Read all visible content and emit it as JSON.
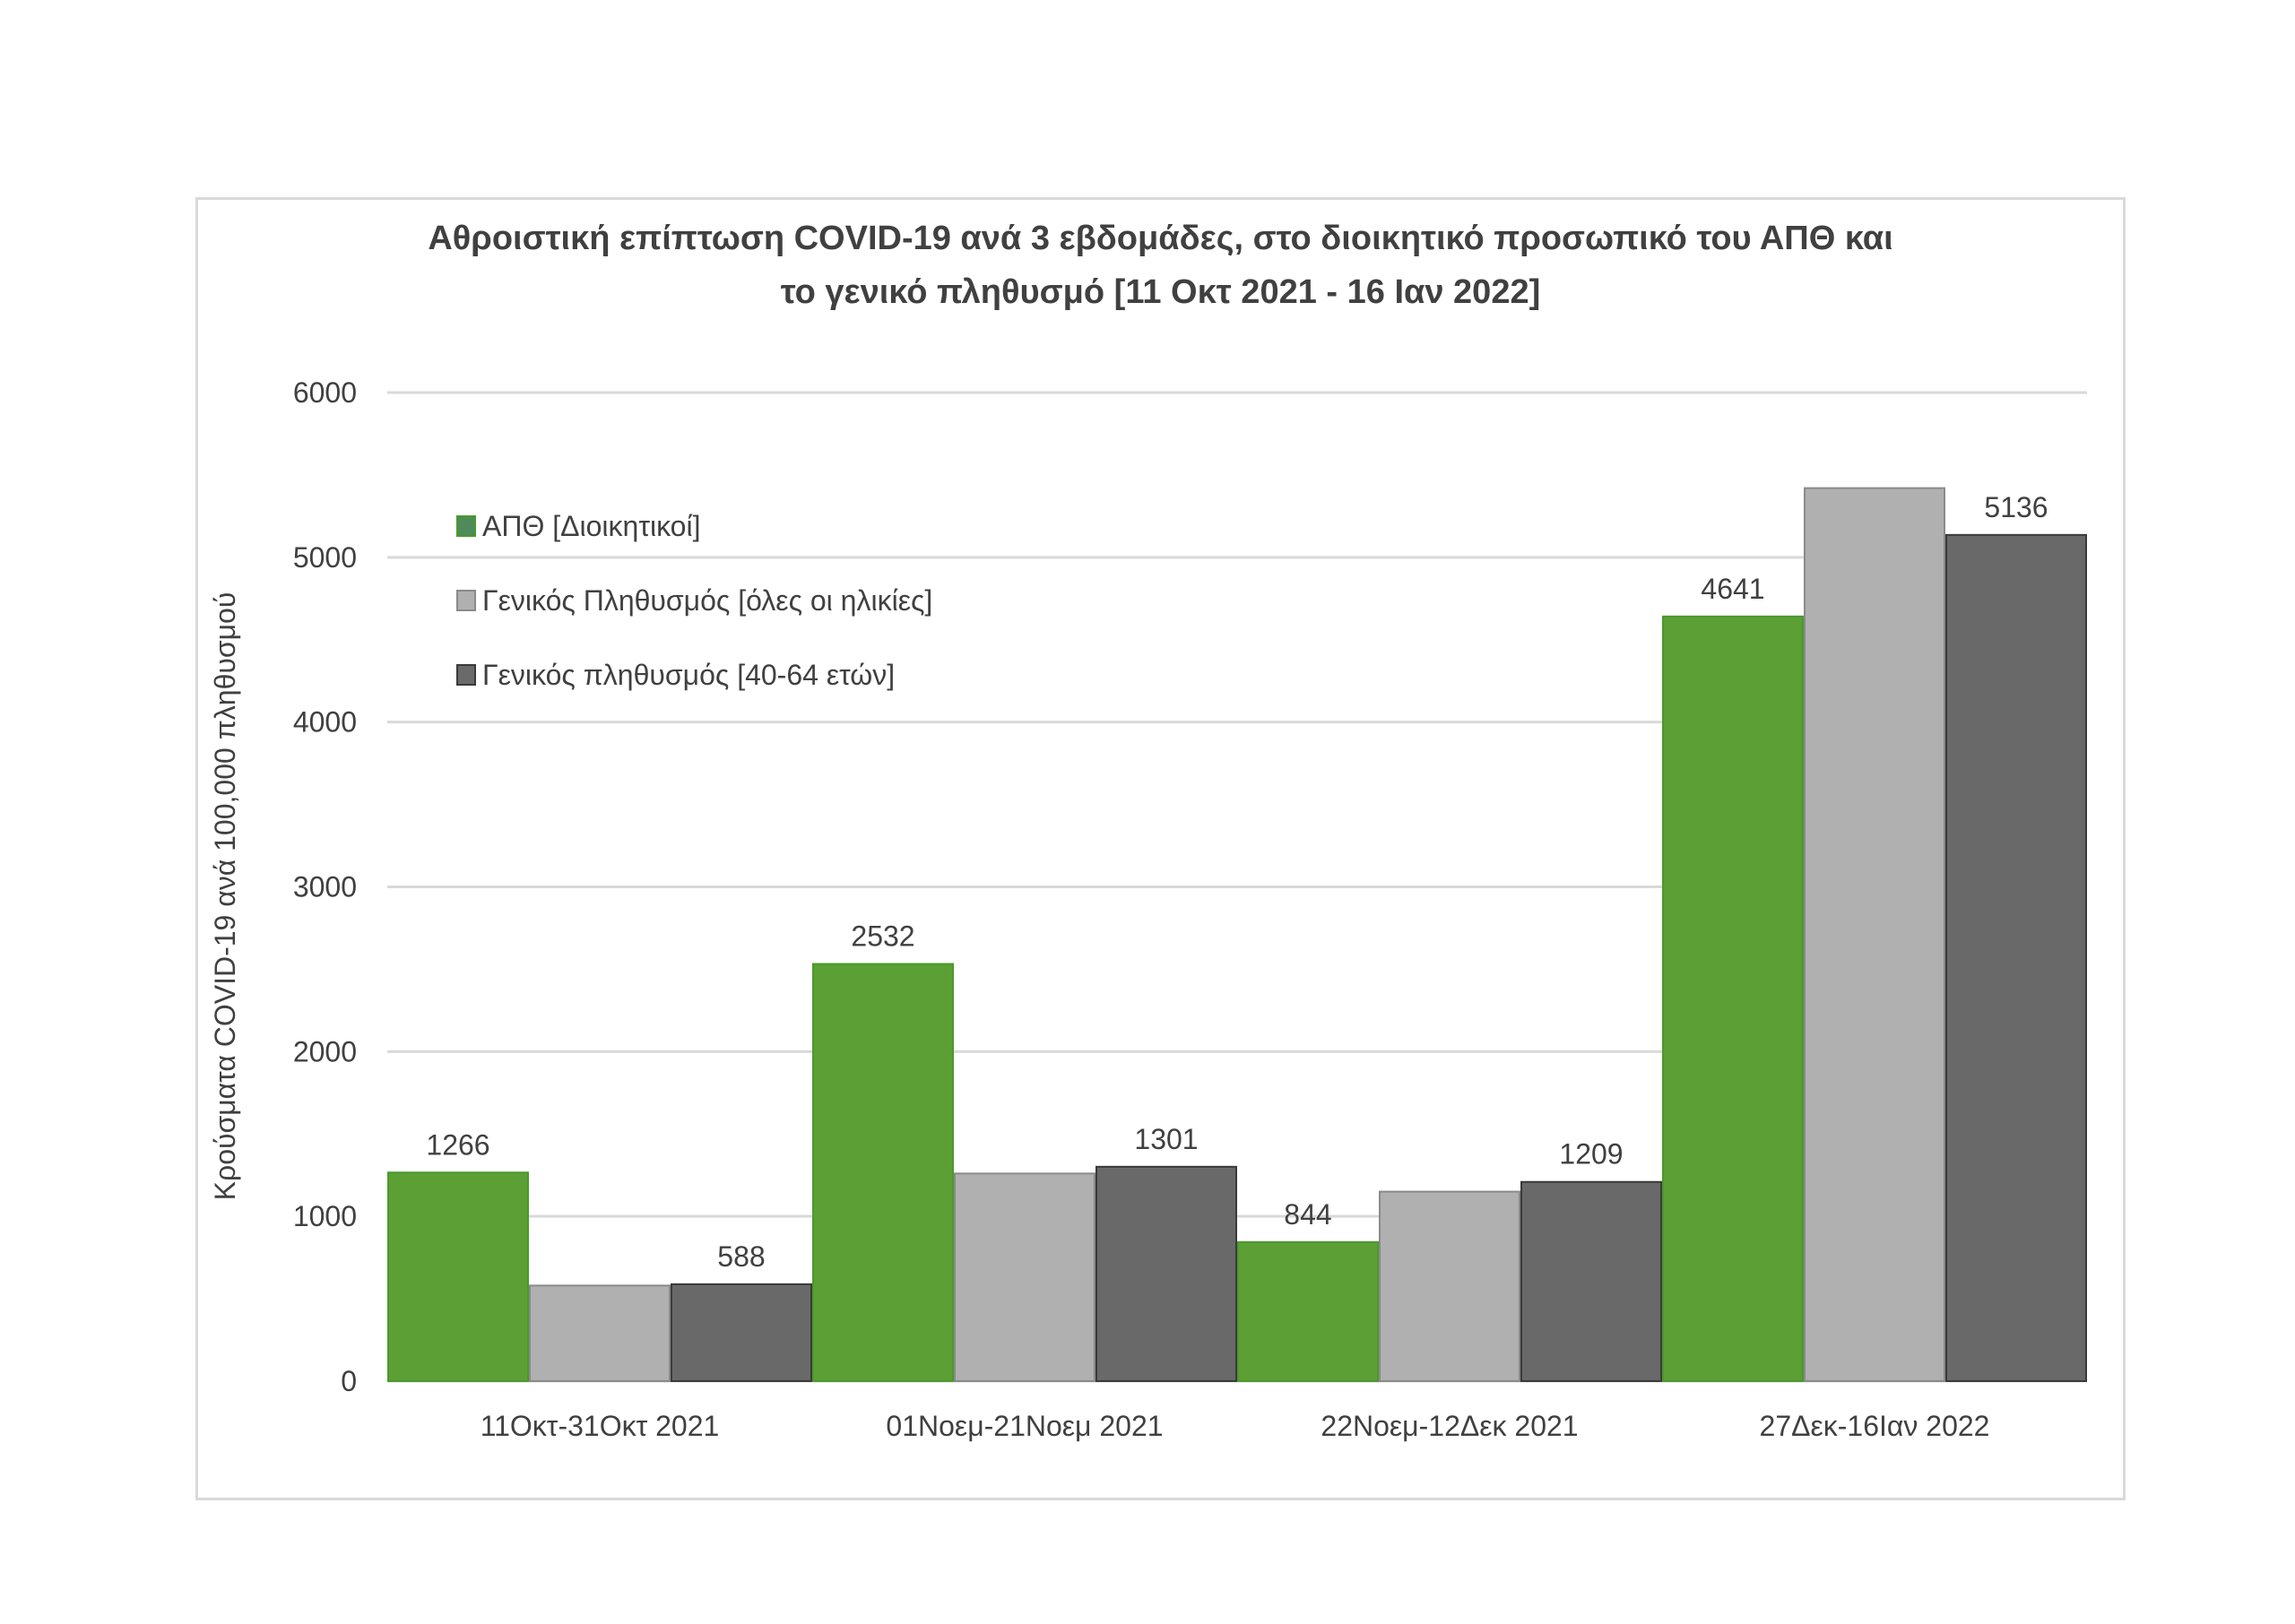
{
  "chart_data": {
    "type": "bar",
    "title_lines": [
      "Αθροιστική επίπτωση COVID-19 ανά 3 εβδομάδες, στο διοικητικό προσωπικό του ΑΠΘ και",
      "το γενικό πληθυσμό [11 Οκτ 2021 - 16 Ιαν 2022]"
    ],
    "xlabel": "",
    "ylabel": "Κρούσματα COVID-19 ανά 100,000 πληθυσμού",
    "ylim": [
      0,
      6000
    ],
    "yticks": [
      0,
      1000,
      2000,
      3000,
      4000,
      5000,
      6000
    ],
    "grid": true,
    "legend_position": "top-left (inside plot)",
    "categories": [
      "11Οκτ-31Οκτ 2021",
      "01Νοεμ-21Νοεμ 2021",
      "22Νοεμ-12Δεκ 2021",
      "27Δεκ-16Ιαν 2022"
    ],
    "series": [
      {
        "name": "ΑΠΘ [Διοικητικοί]",
        "color": "#5c9f35",
        "border": "#4a9a2c",
        "values": [
          1266,
          2532,
          844,
          4641
        ],
        "labels": [
          "1266",
          "2532",
          "844",
          "4641"
        ]
      },
      {
        "name": "Γενικός Πληθυσμός [όλες οι ηλικίες]",
        "color": "#b0b0b0",
        "border": "#8a8a8a",
        "values": [
          580,
          1260,
          1150,
          5420
        ],
        "labels": [
          null,
          null,
          null,
          null
        ]
      },
      {
        "name": "Γενικός πληθυσμός [40-64 ετών]",
        "color": "#696969",
        "border": "#3a3a3a",
        "values": [
          588,
          1301,
          1209,
          5136
        ],
        "labels": [
          "588",
          "1301",
          "1209",
          "5136"
        ]
      }
    ],
    "legend_swatches": [
      "#4f8a5a",
      "#b0b0b0",
      "#6a6a6a"
    ]
  }
}
